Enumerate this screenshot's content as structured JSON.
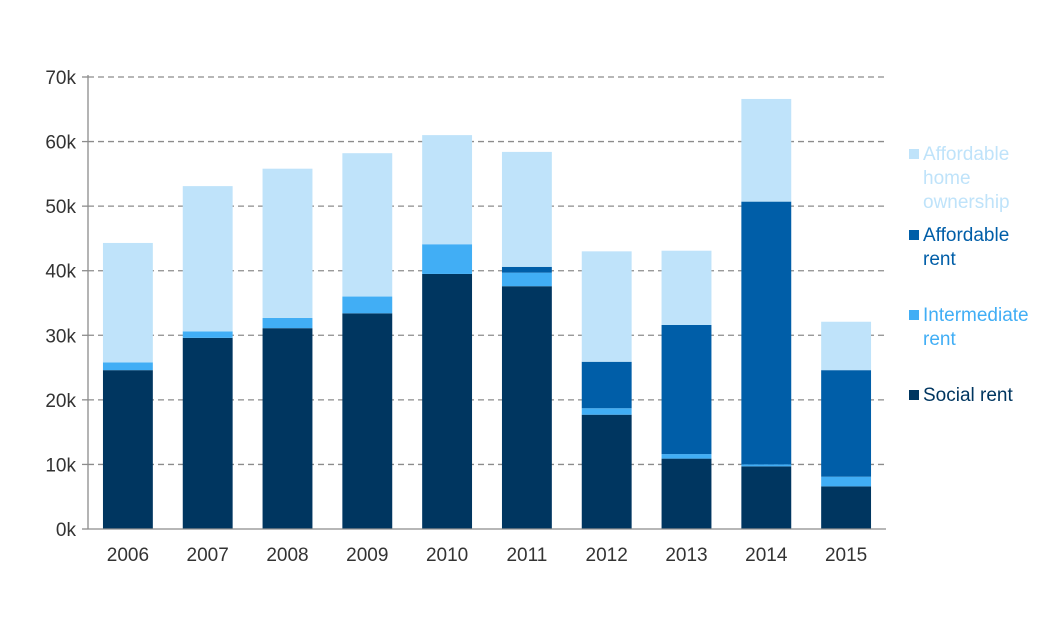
{
  "chart_data": {
    "type": "bar",
    "stacked": true,
    "title": "",
    "xlabel": "",
    "ylabel": "",
    "categories": [
      "2006",
      "2007",
      "2008",
      "2009",
      "2010",
      "2011",
      "2012",
      "2013",
      "2014",
      "2015"
    ],
    "ylim": [
      0,
      70000
    ],
    "yticks": [
      0,
      10000,
      20000,
      30000,
      40000,
      50000,
      60000,
      70000
    ],
    "ytick_labels": [
      "0k",
      "10k",
      "20k",
      "30k",
      "40k",
      "50k",
      "60k",
      "70k"
    ],
    "grid": "horizontal dashed",
    "legend_position": "right",
    "series": [
      {
        "name": "Social rent",
        "color": "#003660",
        "values": [
          24600,
          29600,
          31100,
          33400,
          39500,
          37600,
          17700,
          10900,
          9700,
          6600
        ]
      },
      {
        "name": "Intermediate rent",
        "color": "#41aef5",
        "values": [
          1200,
          1000,
          1600,
          2600,
          4600,
          2100,
          1000,
          700,
          300,
          1500
        ]
      },
      {
        "name": "Affordable rent",
        "color": "#005ea8",
        "values": [
          0,
          0,
          0,
          0,
          0,
          900,
          7200,
          20000,
          40700,
          16500
        ]
      },
      {
        "name": "Affordable home ownership",
        "color": "#bfe3fa",
        "values": [
          18500,
          22500,
          23100,
          22200,
          16900,
          17800,
          17100,
          11500,
          15900,
          7500
        ]
      }
    ],
    "legend": [
      {
        "series": "Affordable home ownership",
        "lines": [
          "Affordable",
          "home",
          "ownership"
        ],
        "color": "#bfe3fa"
      },
      {
        "series": "Affordable rent",
        "lines": [
          "Affordable",
          "rent"
        ],
        "color": "#005ea8"
      },
      {
        "series": "Intermediate rent",
        "lines": [
          "Intermediate",
          "rent"
        ],
        "color": "#41aef5"
      },
      {
        "series": "Social rent",
        "lines": [
          "Social rent"
        ],
        "color": "#003660"
      }
    ]
  }
}
